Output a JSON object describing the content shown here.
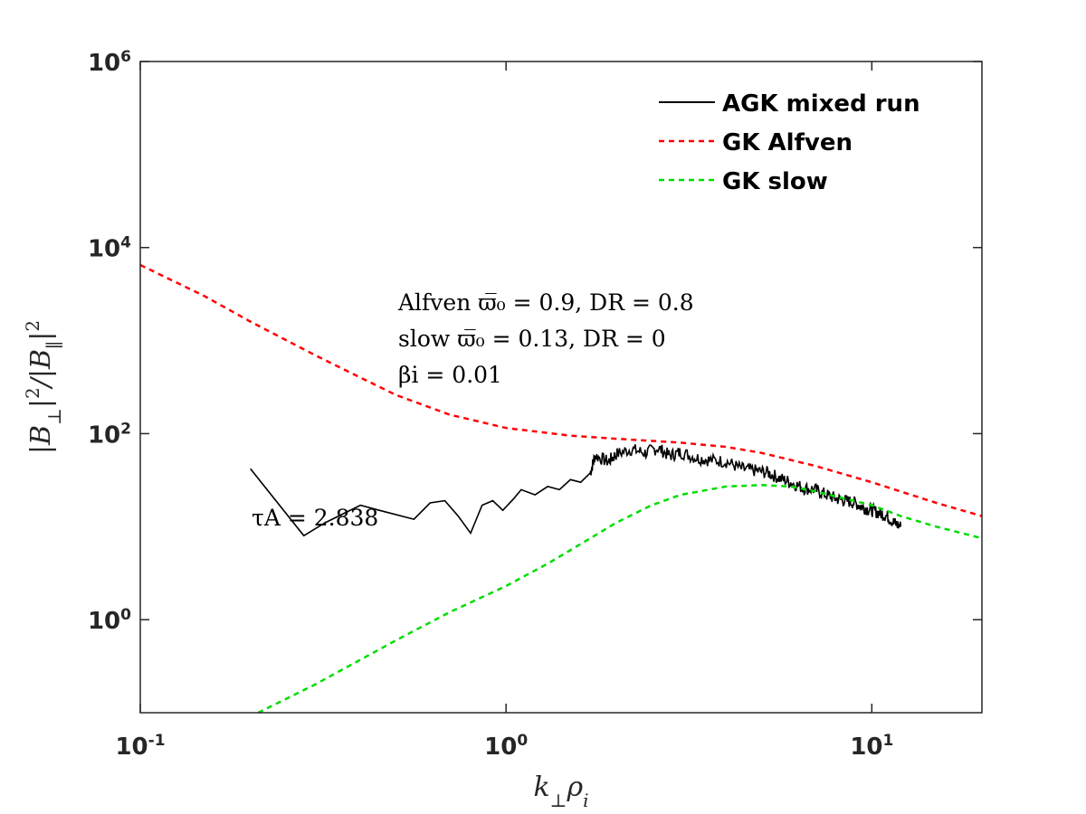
{
  "chart_data": {
    "type": "line",
    "title": "",
    "xlabel": "k⊥ρi",
    "ylabel": "|B⊥|²/|B∥|²",
    "xscale": "log",
    "yscale": "log",
    "xlim": [
      0.1,
      20
    ],
    "ylim": [
      0.1,
      1000000
    ],
    "grid": false,
    "legend_position": "top-right",
    "x_ticks": [
      {
        "value": 0.1,
        "base": "10",
        "exp": "-1"
      },
      {
        "value": 1,
        "base": "10",
        "exp": "0"
      },
      {
        "value": 10,
        "base": "10",
        "exp": "1"
      }
    ],
    "y_ticks": [
      {
        "value": 1,
        "base": "10",
        "exp": "0"
      },
      {
        "value": 100,
        "base": "10",
        "exp": "2"
      },
      {
        "value": 10000,
        "base": "10",
        "exp": "4"
      },
      {
        "value": 1000000,
        "base": "10",
        "exp": "6"
      }
    ],
    "annotations": [
      "Alfven ϖ̅₀ = 0.9, DR = 0.8",
      "slow ϖ̅₀ = 0.13, DR = 0",
      "βi = 0.01",
      "τA = 2.838"
    ],
    "series": [
      {
        "name": "AGK mixed run",
        "color": "#000000",
        "style": "solid",
        "x": [
          0.2,
          0.28,
          0.32,
          0.4,
          0.45,
          0.56,
          0.62,
          0.68,
          0.74,
          0.8,
          0.86,
          0.92,
          0.98,
          1.05,
          1.1,
          1.2,
          1.3,
          1.4,
          1.5,
          1.6,
          1.7,
          1.75,
          1.9,
          2.0,
          2.2,
          2.4,
          2.6,
          2.8,
          3.0,
          3.3,
          3.6,
          4.0,
          4.4,
          4.8,
          5.2,
          5.6,
          6.0,
          6.5,
          7.0,
          7.5,
          8.0,
          8.5,
          9.0,
          9.5,
          10.0,
          10.5,
          11.0,
          11.5,
          12.0
        ],
        "y": [
          42,
          8,
          11,
          17,
          15,
          12,
          18,
          19,
          13,
          8.5,
          17,
          19,
          15,
          20,
          25,
          22,
          27,
          25,
          32,
          30,
          38,
          58,
          50,
          60,
          68,
          62,
          70,
          58,
          63,
          55,
          52,
          50,
          42,
          40,
          38,
          33,
          30,
          26,
          25,
          22,
          20,
          19,
          18,
          16,
          15,
          14,
          13,
          11,
          10
        ]
      },
      {
        "name": "GK Alfven",
        "color": "#ff0000",
        "style": "dashed",
        "x": [
          0.1,
          0.15,
          0.2,
          0.3,
          0.4,
          0.5,
          0.7,
          1.0,
          1.5,
          2.0,
          3.0,
          4.0,
          5.0,
          7.0,
          10.0,
          15.0,
          20.0
        ],
        "y": [
          6500,
          3000,
          1600,
          700,
          400,
          260,
          160,
          115,
          95,
          88,
          80,
          72,
          62,
          45,
          30,
          18,
          13
        ]
      },
      {
        "name": "GK slow",
        "color": "#00dd00",
        "style": "dashed",
        "x": [
          0.21,
          0.3,
          0.5,
          0.7,
          1.0,
          1.3,
          1.6,
          2.0,
          2.5,
          3.0,
          4.0,
          5.0,
          6.0,
          7.0,
          8.0,
          10.0,
          12.0,
          15.0,
          20.0
        ],
        "y": [
          0.1,
          0.2,
          0.6,
          1.2,
          2.3,
          4.0,
          6.5,
          11,
          17,
          22,
          27,
          28,
          27,
          24,
          21,
          17,
          13,
          10,
          7.5
        ]
      }
    ]
  }
}
